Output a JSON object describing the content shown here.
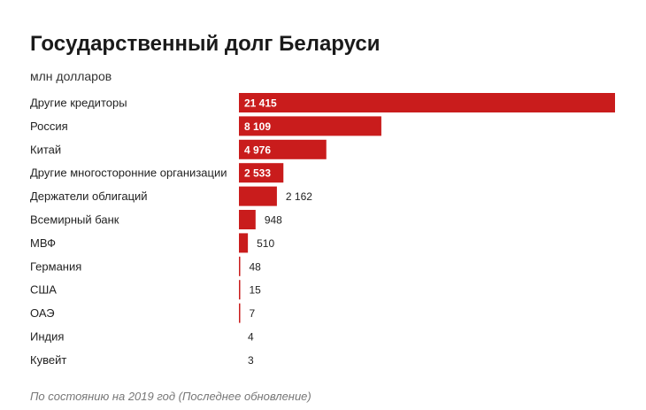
{
  "title": "Государственный долг Беларуси",
  "subtitle": "млн долларов",
  "footnote": "По состоянию на 2019 год (Последнее обновление)",
  "colors": {
    "bar": "#c91c1c",
    "label": "#222222",
    "inside_label": "#ffffff"
  },
  "chart_data": {
    "type": "bar",
    "orientation": "horizontal",
    "title": "Государственный долг Беларуси",
    "subtitle": "млн долларов",
    "categories": [
      "Другие кредиторы",
      "Россия",
      "Китай",
      "Другие многосторонние организации",
      "Держатели облигаций",
      "Всемирный банк",
      "МВФ",
      "Германия",
      "США",
      "ОАЭ",
      "Индия",
      "Кувейт"
    ],
    "values": [
      21415,
      8109,
      4976,
      2533,
      2162,
      948,
      510,
      48,
      15,
      7,
      4,
      3
    ],
    "value_labels": [
      "21 415",
      "8 109",
      "4 976",
      "2 533",
      "2 162",
      "948",
      "510",
      "48",
      "15",
      "7",
      "4",
      "3"
    ],
    "xlim": [
      0,
      21415
    ],
    "grid": false,
    "legend": "none"
  }
}
